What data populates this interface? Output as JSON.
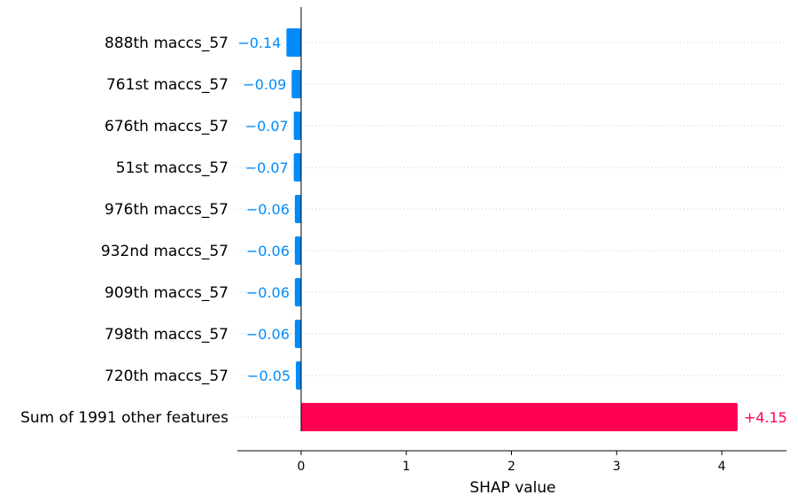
{
  "chart_data": {
    "type": "bar",
    "orientation": "horizontal",
    "title": "",
    "xlabel": "SHAP value",
    "ylabel": "",
    "categories": [
      "888th maccs_57",
      "761st maccs_57",
      "676th maccs_57",
      "51st maccs_57",
      "976th maccs_57",
      "932nd maccs_57",
      "909th maccs_57",
      "798th maccs_57",
      "720th maccs_57",
      "Sum of 1991 other features"
    ],
    "values": [
      -0.14,
      -0.09,
      -0.07,
      -0.07,
      -0.06,
      -0.06,
      -0.06,
      -0.06,
      -0.05,
      4.15
    ],
    "value_labels": [
      "−0.14",
      "−0.09",
      "−0.07",
      "−0.07",
      "−0.06",
      "−0.06",
      "−0.06",
      "−0.06",
      "−0.05",
      "+4.15"
    ],
    "xticks": [
      0,
      1,
      2,
      3,
      4
    ],
    "xtick_labels": [
      "0",
      "1",
      "2",
      "3",
      "4"
    ],
    "xlim": [
      -0.6,
      4.6
    ],
    "grid": "dotted horizontal row guides",
    "colors": {
      "negative": "#008bfb",
      "positive": "#ff0051",
      "zero_line": "#000000",
      "axis": "#000000",
      "grid": "#cccccc"
    }
  }
}
